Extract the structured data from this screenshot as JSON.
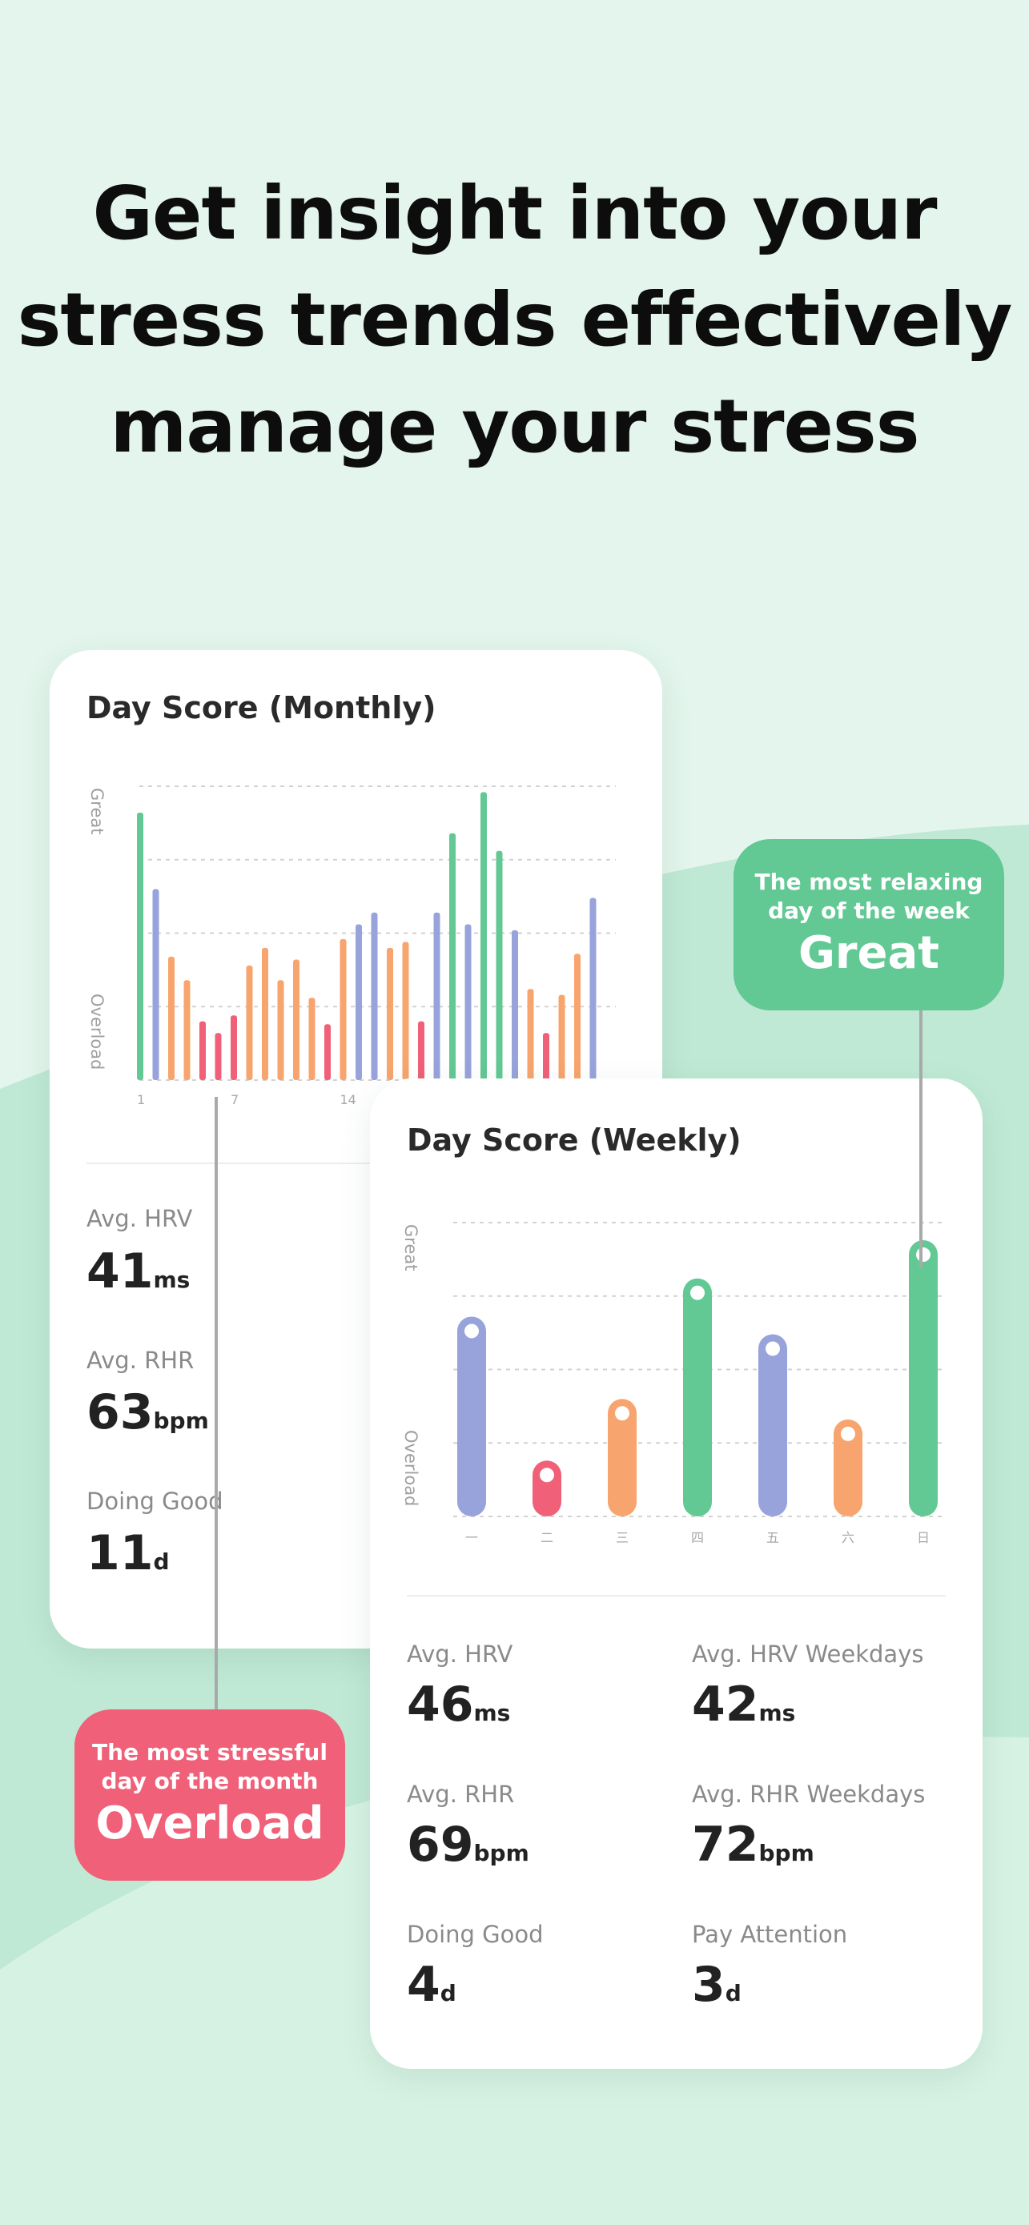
{
  "headline": {
    "line1": "Get insight into your",
    "line2": "stress trends effectively",
    "line3": "manage your stress"
  },
  "colors": {
    "background": "#e3f5ec",
    "wave": "#bfe9d4",
    "great_green": "#62c894",
    "overload_red": "#f06078",
    "orange": "#f8a46e",
    "lavender": "#97a3da",
    "connector": "#a9a9a9"
  },
  "monthly": {
    "title": "Day Score (Monthly)",
    "axis_top": "Great",
    "axis_bottom": "Overload",
    "stats": [
      {
        "label": "Avg. HRV",
        "value": "41",
        "unit": "ms"
      },
      {
        "label": "Avg. RHR",
        "value": "63",
        "unit": "bpm"
      },
      {
        "label": "Doing Good",
        "value": "11",
        "unit": "d"
      }
    ]
  },
  "weekly": {
    "title": "Day Score (Weekly)",
    "axis_top": "Great",
    "axis_bottom": "Overload",
    "stats_left": [
      {
        "label": "Avg. HRV",
        "value": "46",
        "unit": "ms"
      },
      {
        "label": "Avg. RHR",
        "value": "69",
        "unit": "bpm"
      },
      {
        "label": "Doing Good",
        "value": "4",
        "unit": "d"
      }
    ],
    "stats_right": [
      {
        "label": "Avg. HRV Weekdays",
        "value": "42",
        "unit": "ms"
      },
      {
        "label": "Avg. RHR Weekdays",
        "value": "72",
        "unit": "bpm"
      },
      {
        "label": "Pay Attention",
        "value": "3",
        "unit": "d"
      }
    ]
  },
  "bubble_great": {
    "sub1": "The most relaxing",
    "sub2": "day of the week",
    "main": "Great"
  },
  "bubble_overload": {
    "sub1": "The most stressful",
    "sub2": "day of the month",
    "main": "Overload"
  },
  "chart_data": [
    {
      "type": "bar",
      "title": "Day Score (Monthly)",
      "ylabel_top": "Great",
      "ylabel_bottom": "Overload",
      "ylim": [
        0,
        100
      ],
      "x_tick_labels": [
        "1",
        "7",
        "14"
      ],
      "x": [
        1,
        2,
        3,
        4,
        5,
        6,
        7,
        8,
        9,
        10,
        11,
        12,
        13,
        14,
        15,
        16,
        17,
        18,
        19,
        20,
        21,
        22,
        23,
        24,
        25,
        26,
        27,
        28,
        29,
        30
      ],
      "values": [
        91,
        65,
        42,
        34,
        20,
        16,
        22,
        39,
        45,
        34,
        41,
        28,
        19,
        48,
        53,
        57,
        45,
        47,
        20,
        57,
        84,
        53,
        98,
        78,
        51,
        31,
        16,
        29,
        43,
        62
      ],
      "colors": [
        "green",
        "lavender",
        "orange",
        "orange",
        "red",
        "red",
        "red",
        "orange",
        "orange",
        "orange",
        "orange",
        "orange",
        "red",
        "orange",
        "lavender",
        "lavender",
        "orange",
        "orange",
        "red",
        "lavender",
        "green",
        "lavender",
        "green",
        "green",
        "lavender",
        "orange",
        "red",
        "orange",
        "orange",
        "lavender"
      ]
    },
    {
      "type": "bar",
      "title": "Day Score (Weekly)",
      "ylabel_top": "Great",
      "ylabel_bottom": "Overload",
      "ylim": [
        0,
        100
      ],
      "categories": [
        "一",
        "二",
        "三",
        "四",
        "五",
        "六",
        "日"
      ],
      "values": [
        68,
        19,
        40,
        81,
        62,
        33,
        94
      ],
      "colors": [
        "lavender",
        "red",
        "orange",
        "green",
        "lavender",
        "orange",
        "green"
      ]
    }
  ]
}
